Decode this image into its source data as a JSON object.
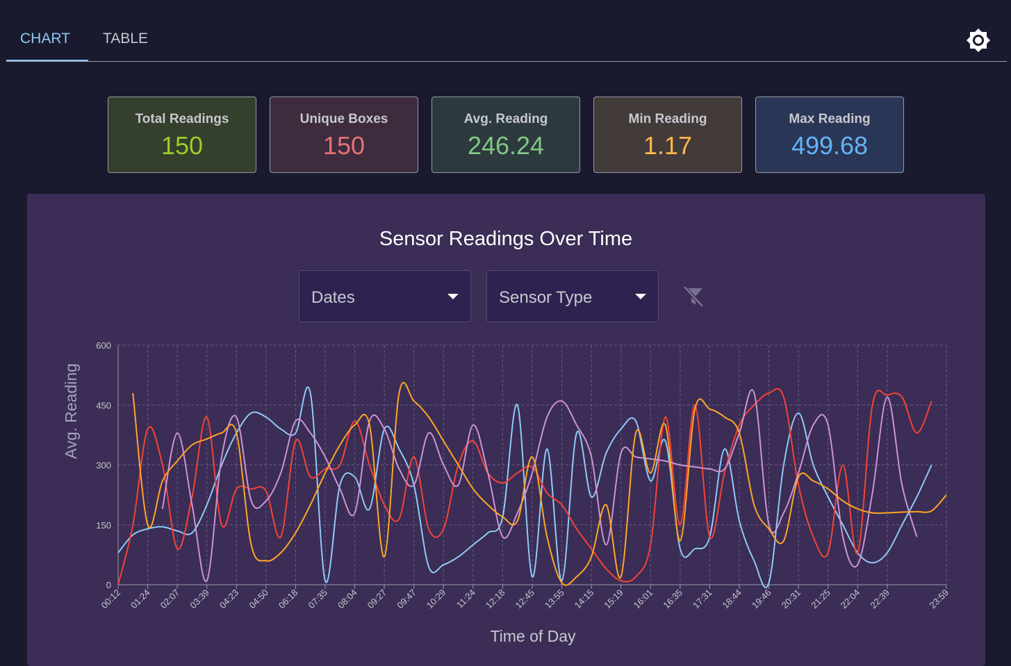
{
  "tabs": [
    "CHART",
    "TABLE"
  ],
  "stats": [
    {
      "label": "Total Readings",
      "value": 150,
      "color": "#9ccc2a",
      "bg": "#343f2c"
    },
    {
      "label": "Unique Boxes",
      "value": 150,
      "color": "#e57373",
      "bg": "#3e2c3e"
    },
    {
      "label": "Avg. Reading",
      "value": 246.24,
      "color": "#81c784",
      "bg": "#2c3a3e"
    },
    {
      "label": "Min Reading",
      "value": 1.17,
      "color": "#ffb74d",
      "bg": "#433a3a"
    },
    {
      "label": "Max Reading",
      "value": 499.68,
      "color": "#64b5f6",
      "bg": "#2a3655"
    }
  ],
  "filters": [
    "Dates",
    "Sensor Type"
  ],
  "chart_data": {
    "type": "line",
    "title": "Sensor Readings Over Time",
    "x_label": "Time of Day",
    "y_label": "Avg. Reading",
    "categories": [
      "00:12",
      null,
      "01:24",
      null,
      "02:07",
      null,
      "03:39",
      null,
      "04:23",
      null,
      "04:50",
      null,
      "06:18",
      null,
      "07:35",
      null,
      "08:04",
      null,
      "09:27",
      null,
      "09:47",
      null,
      "10:29",
      null,
      "11:24",
      null,
      "12:18",
      null,
      "12:45",
      null,
      "13:55",
      null,
      "14:15",
      null,
      "15:19",
      null,
      "16:01",
      null,
      "16:35",
      null,
      "17:31",
      null,
      "18:44",
      null,
      "19:46",
      null,
      "20:31",
      null,
      "21:25",
      null,
      "22:04",
      null,
      "22:39",
      null,
      null,
      null,
      "23:59"
    ],
    "ylim": [
      0,
      600
    ],
    "yticks": [
      0,
      150,
      300,
      450,
      600
    ],
    "grid": true,
    "series": [
      {
        "color": "#90caf9",
        "values": [
          80,
          125,
          140,
          145,
          135,
          130,
          200,
          300,
          380,
          430,
          420,
          390,
          380,
          480,
          10,
          250,
          270,
          190,
          390,
          340,
          250,
          45,
          50,
          70,
          100,
          130,
          170,
          450,
          20,
          340,
          10,
          380,
          220,
          330,
          390,
          410,
          260,
          360,
          90,
          90,
          120,
          340,
          160,
          60,
          5,
          300,
          430,
          300,
          220,
          150,
          80,
          55,
          80,
          150,
          220,
          300,
          null
        ]
      },
      {
        "color": "#f44336",
        "values": [
          0,
          150,
          390,
          300,
          90,
          220,
          420,
          150,
          240,
          240,
          235,
          120,
          360,
          270,
          290,
          300,
          410,
          300,
          200,
          165,
          320,
          140,
          140,
          300,
          360,
          280,
          255,
          280,
          295,
          230,
          200,
          140,
          90,
          40,
          10,
          20,
          100,
          420,
          150,
          450,
          120,
          280,
          400,
          450,
          480,
          470,
          250,
          120,
          80,
          300,
          80,
          450,
          475,
          470,
          380,
          460,
          null
        ]
      },
      {
        "color": "#ce93d8",
        "values": [
          null,
          null,
          null,
          190,
          380,
          200,
          10,
          320,
          420,
          210,
          210,
          280,
          410,
          380,
          320,
          240,
          180,
          410,
          390,
          290,
          250,
          380,
          300,
          250,
          400,
          280,
          120,
          180,
          280,
          420,
          460,
          400,
          320,
          100,
          330,
          320,
          315,
          310,
          300,
          295,
          290,
          290,
          380,
          480,
          150,
          180,
          280,
          400,
          400,
          120,
          50,
          230,
          470,
          250,
          120,
          null,
          null
        ]
      },
      {
        "color": "#ffa726",
        "values": [
          null,
          480,
          150,
          260,
          310,
          350,
          365,
          380,
          380,
          100,
          60,
          80,
          130,
          200,
          280,
          350,
          400,
          400,
          70,
          480,
          460,
          420,
          360,
          300,
          240,
          200,
          170,
          160,
          320,
          120,
          5,
          20,
          70,
          200,
          20,
          380,
          280,
          400,
          110,
          440,
          440,
          420,
          380,
          200,
          140,
          110,
          270,
          260,
          240,
          210,
          190,
          180,
          180,
          182,
          183,
          185,
          225
        ]
      }
    ]
  }
}
